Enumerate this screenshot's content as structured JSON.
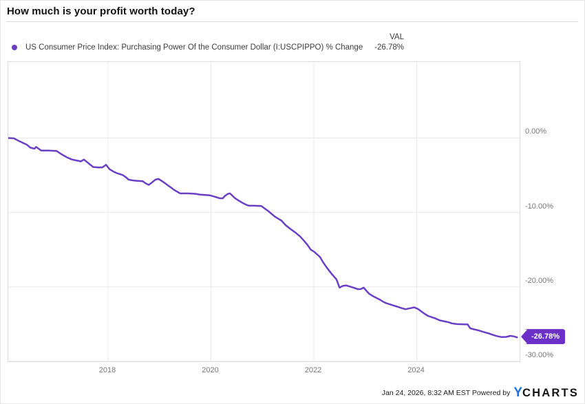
{
  "header": {
    "title": "How much is your profit worth today?"
  },
  "legend": {
    "series_label": "US Consumer Price Index: Purchasing Power Of the Consumer Dollar (I:USCPIPPO) % Change",
    "val_header": "VAL",
    "val_value": "-26.78%",
    "dot_color": "#6A3FC4"
  },
  "chart_data": {
    "type": "line",
    "title": "How much is your profit worth today?",
    "xlabel": "",
    "ylabel": "",
    "grid": true,
    "legend_position": "top-left",
    "xlim": [
      2016.06,
      2026.0
    ],
    "ylim": [
      -30,
      10.21
    ],
    "x_ticks": [
      2018,
      2020,
      2022,
      2024
    ],
    "x_tick_labels": [
      "2018",
      "2020",
      "2022",
      "2024"
    ],
    "y_ticks": [
      0,
      -10,
      -20,
      -30
    ],
    "y_tick_labels": [
      "0.00%",
      "-10.00%",
      "-20.00%",
      "-30.00%"
    ],
    "line_color": "#6A3FC4",
    "grid_color": "#e8e8e8",
    "end_label": {
      "text": "-26.78%",
      "value": -26.78,
      "color": "#6B30C8"
    },
    "series": [
      {
        "name": "US Consumer Price Index: Purchasing Power Of the Consumer Dollar (I:USCPIPPO) % Change",
        "color": "#6A3FC4",
        "points": [
          [
            2016.06,
            0.0
          ],
          [
            2016.17,
            -0.05
          ],
          [
            2016.28,
            -0.45
          ],
          [
            2016.42,
            -0.9
          ],
          [
            2016.49,
            -1.3
          ],
          [
            2016.57,
            -1.45
          ],
          [
            2016.6,
            -1.2
          ],
          [
            2016.7,
            -1.7
          ],
          [
            2016.85,
            -1.7
          ],
          [
            2017.0,
            -1.75
          ],
          [
            2017.1,
            -2.2
          ],
          [
            2017.2,
            -2.6
          ],
          [
            2017.3,
            -2.9
          ],
          [
            2017.4,
            -3.05
          ],
          [
            2017.47,
            -3.15
          ],
          [
            2017.53,
            -2.9
          ],
          [
            2017.62,
            -3.4
          ],
          [
            2017.71,
            -3.9
          ],
          [
            2017.8,
            -3.95
          ],
          [
            2017.89,
            -3.95
          ],
          [
            2017.96,
            -3.6
          ],
          [
            2018.03,
            -4.2
          ],
          [
            2018.1,
            -4.5
          ],
          [
            2018.16,
            -4.7
          ],
          [
            2018.23,
            -4.85
          ],
          [
            2018.29,
            -5.0
          ],
          [
            2018.35,
            -5.3
          ],
          [
            2018.4,
            -5.6
          ],
          [
            2018.48,
            -5.7
          ],
          [
            2018.56,
            -5.75
          ],
          [
            2018.67,
            -5.8
          ],
          [
            2018.73,
            -6.1
          ],
          [
            2018.79,
            -6.3
          ],
          [
            2018.85,
            -6.0
          ],
          [
            2018.92,
            -5.6
          ],
          [
            2018.98,
            -5.5
          ],
          [
            2019.05,
            -5.8
          ],
          [
            2019.11,
            -6.1
          ],
          [
            2019.17,
            -6.4
          ],
          [
            2019.23,
            -6.7
          ],
          [
            2019.29,
            -7.0
          ],
          [
            2019.34,
            -7.2
          ],
          [
            2019.4,
            -7.45
          ],
          [
            2019.55,
            -7.45
          ],
          [
            2019.7,
            -7.5
          ],
          [
            2019.78,
            -7.6
          ],
          [
            2019.88,
            -7.65
          ],
          [
            2019.98,
            -7.7
          ],
          [
            2020.08,
            -7.9
          ],
          [
            2020.17,
            -8.1
          ],
          [
            2020.23,
            -8.1
          ],
          [
            2020.27,
            -7.8
          ],
          [
            2020.33,
            -7.5
          ],
          [
            2020.37,
            -7.45
          ],
          [
            2020.47,
            -8.1
          ],
          [
            2020.55,
            -8.45
          ],
          [
            2020.61,
            -8.7
          ],
          [
            2020.68,
            -8.95
          ],
          [
            2020.74,
            -9.1
          ],
          [
            2020.85,
            -9.1
          ],
          [
            2020.98,
            -9.15
          ],
          [
            2021.05,
            -9.5
          ],
          [
            2021.12,
            -9.85
          ],
          [
            2021.18,
            -10.2
          ],
          [
            2021.25,
            -10.6
          ],
          [
            2021.31,
            -10.85
          ],
          [
            2021.37,
            -11.1
          ],
          [
            2021.45,
            -11.7
          ],
          [
            2021.54,
            -12.2
          ],
          [
            2021.64,
            -12.7
          ],
          [
            2021.73,
            -13.2
          ],
          [
            2021.82,
            -13.9
          ],
          [
            2021.88,
            -14.4
          ],
          [
            2021.94,
            -15.0
          ],
          [
            2022.01,
            -15.3
          ],
          [
            2022.12,
            -16.0
          ],
          [
            2022.18,
            -16.7
          ],
          [
            2022.25,
            -17.4
          ],
          [
            2022.34,
            -18.2
          ],
          [
            2022.44,
            -19.0
          ],
          [
            2022.5,
            -20.1
          ],
          [
            2022.57,
            -19.85
          ],
          [
            2022.63,
            -19.8
          ],
          [
            2022.7,
            -19.95
          ],
          [
            2022.77,
            -20.1
          ],
          [
            2022.85,
            -20.3
          ],
          [
            2022.91,
            -20.3
          ],
          [
            2022.97,
            -20.1
          ],
          [
            2023.03,
            -20.6
          ],
          [
            2023.08,
            -20.95
          ],
          [
            2023.15,
            -21.25
          ],
          [
            2023.22,
            -21.5
          ],
          [
            2023.28,
            -21.7
          ],
          [
            2023.35,
            -22.0
          ],
          [
            2023.41,
            -22.2
          ],
          [
            2023.48,
            -22.35
          ],
          [
            2023.55,
            -22.5
          ],
          [
            2023.62,
            -22.65
          ],
          [
            2023.68,
            -22.8
          ],
          [
            2023.78,
            -23.0
          ],
          [
            2023.85,
            -22.9
          ],
          [
            2023.95,
            -22.75
          ],
          [
            2024.02,
            -22.95
          ],
          [
            2024.08,
            -23.25
          ],
          [
            2024.15,
            -23.6
          ],
          [
            2024.22,
            -23.9
          ],
          [
            2024.35,
            -24.2
          ],
          [
            2024.45,
            -24.5
          ],
          [
            2024.55,
            -24.65
          ],
          [
            2024.62,
            -24.75
          ],
          [
            2024.68,
            -24.9
          ],
          [
            2024.78,
            -25.0
          ],
          [
            2024.99,
            -25.05
          ],
          [
            2025.04,
            -25.55
          ],
          [
            2025.11,
            -25.7
          ],
          [
            2025.18,
            -25.8
          ],
          [
            2025.25,
            -25.95
          ],
          [
            2025.32,
            -26.1
          ],
          [
            2025.4,
            -26.25
          ],
          [
            2025.46,
            -26.4
          ],
          [
            2025.55,
            -26.6
          ],
          [
            2025.65,
            -26.75
          ],
          [
            2025.74,
            -26.72
          ],
          [
            2025.82,
            -26.58
          ],
          [
            2025.89,
            -26.65
          ],
          [
            2025.95,
            -26.78
          ]
        ]
      }
    ]
  },
  "footer": {
    "timestamp": "Jan 24, 2026, 8:32 AM EST",
    "powered_by": "Powered by",
    "logo_y": "Y",
    "logo_charts": "CHARTS"
  }
}
